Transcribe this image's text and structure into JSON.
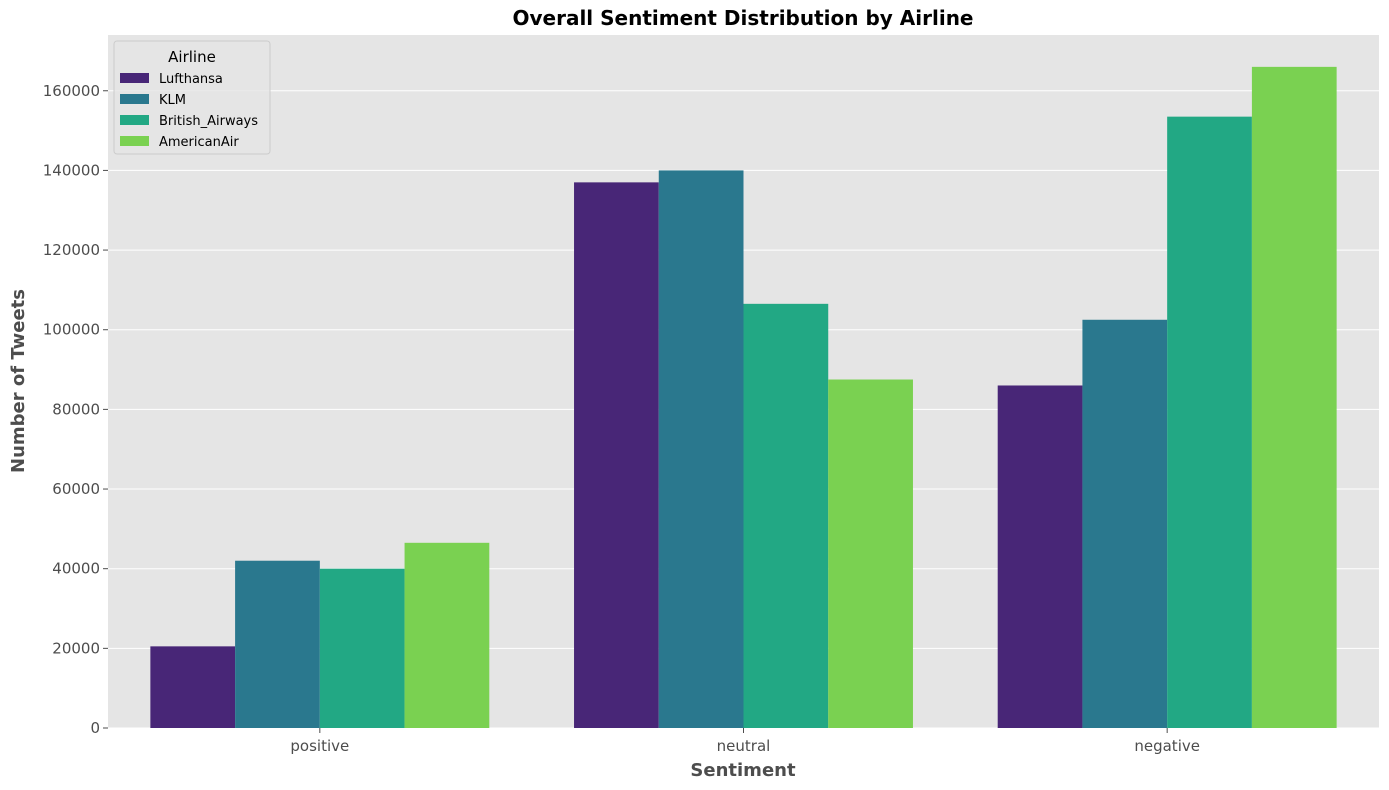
{
  "chart_data": {
    "type": "bar",
    "title": "Overall Sentiment Distribution by Airline",
    "xlabel": "Sentiment",
    "ylabel": "Number of Tweets",
    "categories": [
      "positive",
      "neutral",
      "negative"
    ],
    "series": [
      {
        "name": "Lufthansa",
        "values": [
          20500,
          137000,
          86000
        ],
        "color": "#482677"
      },
      {
        "name": "KLM",
        "values": [
          42000,
          140000,
          102500
        ],
        "color": "#2a788e"
      },
      {
        "name": "British_Airways",
        "values": [
          40000,
          106500,
          153500
        ],
        "color": "#22a884"
      },
      {
        "name": "AmericanAir",
        "values": [
          46500,
          87500,
          166000
        ],
        "color": "#7ad151"
      }
    ],
    "ylim": [
      0,
      174000
    ],
    "yticks": [
      0,
      20000,
      40000,
      60000,
      80000,
      100000,
      120000,
      140000,
      160000
    ],
    "grid": true,
    "legend": {
      "title": "Airline",
      "position": "top-left"
    },
    "colors": {
      "plot_background": "#e5e5e5",
      "grid": "#ffffff"
    }
  }
}
